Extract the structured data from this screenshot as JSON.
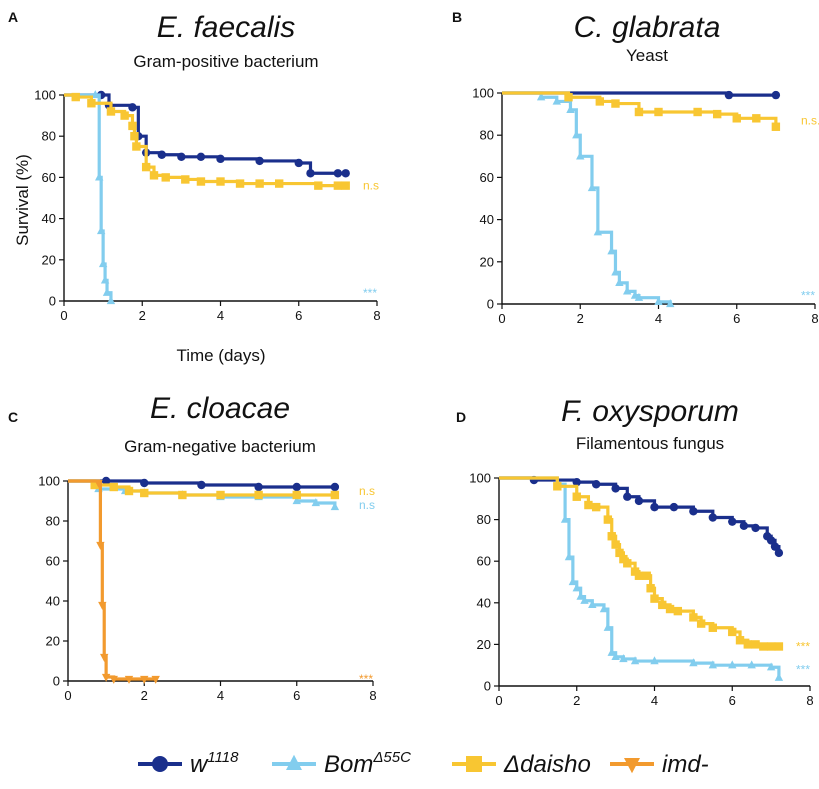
{
  "chart_data": [
    {
      "id": "A",
      "type": "line",
      "letter": "A",
      "title": "E. faecalis",
      "subtitle": "Gram-positive bacterium",
      "xlabel": "Time (days)",
      "ylabel": "Survival (%)",
      "xlim": [
        0,
        8
      ],
      "ylim": [
        0,
        100
      ],
      "xticks": [
        "0",
        "2",
        "4",
        "6",
        "8"
      ],
      "yticks": [
        "0",
        "20",
        "40",
        "60",
        "80",
        "100"
      ],
      "series": [
        {
          "name": "w1118",
          "key": "w",
          "x": [
            0,
            0.95,
            1.15,
            1.75,
            1.9,
            2.1,
            2.5,
            3.0,
            3.5,
            4.0,
            5.0,
            6.0,
            6.3,
            7.0,
            7.2
          ],
          "y": [
            100,
            100,
            95,
            94,
            80,
            72,
            71,
            70,
            70,
            69,
            68,
            67,
            62,
            62,
            62
          ]
        },
        {
          "name": "BomΔ55C",
          "key": "b",
          "x": [
            0,
            0.8,
            0.9,
            0.95,
            1.0,
            1.05,
            1.1,
            1.2
          ],
          "y": [
            100,
            100,
            60,
            34,
            18,
            10,
            4,
            0
          ]
        },
        {
          "name": "Δdaisho",
          "key": "d",
          "x": [
            0,
            0.3,
            0.7,
            1.2,
            1.55,
            1.75,
            1.8,
            1.85,
            2.1,
            2.3,
            2.6,
            3.1,
            3.5,
            4.0,
            4.5,
            5.0,
            5.5,
            6.5,
            7.0,
            7.2
          ],
          "y": [
            100,
            99,
            96,
            92,
            90,
            85,
            80,
            75,
            65,
            61,
            60,
            59,
            58,
            58,
            57,
            57,
            57,
            56,
            56,
            56
          ]
        }
      ],
      "annotations": [
        {
          "text": "n.s",
          "key": "d",
          "y": 56
        },
        {
          "text": "***",
          "key": "b",
          "y": 4
        }
      ]
    },
    {
      "id": "B",
      "type": "line",
      "letter": "B",
      "title": "C. glabrata",
      "subtitle": "Yeast",
      "xlabel": "",
      "ylabel": "",
      "xlim": [
        0,
        8
      ],
      "ylim": [
        0,
        100
      ],
      "xticks": [
        "0",
        "2",
        "4",
        "6",
        "8"
      ],
      "yticks": [
        "0",
        "20",
        "40",
        "60",
        "80",
        "100"
      ],
      "series": [
        {
          "name": "w1118",
          "key": "w",
          "x": [
            0,
            5.8,
            7.0
          ],
          "y": [
            100,
            99,
            99
          ]
        },
        {
          "name": "BomΔ55C",
          "key": "b",
          "x": [
            0,
            1.0,
            1.4,
            1.75,
            1.9,
            2.0,
            2.3,
            2.45,
            2.8,
            2.9,
            3.0,
            3.2,
            3.4,
            3.5,
            4.0,
            4.3
          ],
          "y": [
            100,
            98,
            96,
            92,
            80,
            70,
            55,
            34,
            25,
            15,
            10,
            6,
            4,
            3,
            1,
            0
          ]
        },
        {
          "name": "Δdaisho",
          "key": "d",
          "x": [
            0,
            1.7,
            2.5,
            2.9,
            3.5,
            4.0,
            5.0,
            5.5,
            6.0,
            6.5,
            7.0
          ],
          "y": [
            100,
            98,
            96,
            95,
            91,
            91,
            91,
            90,
            88,
            88,
            84
          ]
        }
      ],
      "annotations": [
        {
          "text": "n.s.",
          "key": "d",
          "y": 87
        },
        {
          "text": "***",
          "key": "b",
          "y": 4
        }
      ]
    },
    {
      "id": "C",
      "type": "line",
      "letter": "C",
      "title": "E. cloacae",
      "subtitle": "Gram-negative bacterium",
      "xlabel": "",
      "ylabel": "",
      "xlim": [
        0,
        8
      ],
      "ylim": [
        0,
        100
      ],
      "xticks": [
        "0",
        "2",
        "4",
        "6",
        "8"
      ],
      "yticks": [
        "0",
        "20",
        "40",
        "60",
        "80",
        "100"
      ],
      "series": [
        {
          "name": "w1118",
          "key": "w",
          "x": [
            0,
            1.0,
            2.0,
            3.5,
            5.0,
            6.0,
            7.0
          ],
          "y": [
            100,
            100,
            99,
            98,
            97,
            97,
            97
          ]
        },
        {
          "name": "BomΔ55C",
          "key": "b",
          "x": [
            0,
            0.8,
            1.5,
            2.0,
            3.0,
            4.0,
            5.0,
            6.0,
            6.5,
            7.0
          ],
          "y": [
            100,
            96,
            95,
            94,
            93,
            92,
            92,
            90,
            89,
            87
          ]
        },
        {
          "name": "Δdaisho",
          "key": "d",
          "x": [
            0,
            0.7,
            1.2,
            1.6,
            2.0,
            3.0,
            4.0,
            5.0,
            6.0,
            7.0
          ],
          "y": [
            100,
            98,
            97,
            95,
            94,
            93,
            93,
            93,
            93,
            93
          ]
        },
        {
          "name": "imd-",
          "key": "i",
          "x": [
            0,
            0.8,
            0.85,
            0.9,
            0.95,
            1.0,
            1.2,
            1.6,
            2.0,
            2.3
          ],
          "y": [
            100,
            99,
            68,
            38,
            12,
            2,
            1,
            1,
            1,
            1
          ]
        }
      ],
      "annotations": [
        {
          "text": "n.s",
          "key": "d",
          "y": 95
        },
        {
          "text": "n.s",
          "key": "b",
          "y": 88
        },
        {
          "text": "***",
          "key": "i",
          "y": 1
        }
      ]
    },
    {
      "id": "D",
      "type": "line",
      "letter": "D",
      "title": "F. oxysporum",
      "subtitle": "Filamentous fungus",
      "xlabel": "",
      "ylabel": "",
      "xlim": [
        0,
        8
      ],
      "ylim": [
        0,
        100
      ],
      "xticks": [
        "0",
        "2",
        "4",
        "6",
        "8"
      ],
      "yticks": [
        "0",
        "20",
        "40",
        "60",
        "80",
        "100"
      ],
      "series": [
        {
          "name": "w1118",
          "key": "w",
          "x": [
            0,
            0.9,
            2.0,
            2.5,
            3.0,
            3.3,
            3.6,
            4.0,
            4.5,
            5.0,
            5.5,
            6.0,
            6.3,
            6.6,
            6.9,
            7.0,
            7.1,
            7.2
          ],
          "y": [
            100,
            99,
            98,
            97,
            95,
            91,
            89,
            86,
            86,
            84,
            81,
            79,
            77,
            76,
            72,
            70,
            67,
            64
          ]
        },
        {
          "name": "BomΔ55C",
          "key": "b",
          "x": [
            0,
            1.5,
            1.7,
            1.8,
            1.9,
            2.0,
            2.1,
            2.2,
            2.4,
            2.7,
            2.8,
            2.9,
            3.0,
            3.2,
            3.5,
            4.0,
            5.0,
            5.5,
            6.0,
            6.5,
            7.0,
            7.2
          ],
          "y": [
            100,
            97,
            80,
            62,
            50,
            47,
            43,
            41,
            39,
            37,
            28,
            16,
            14,
            13,
            12,
            12,
            11,
            10,
            10,
            10,
            9,
            4
          ]
        },
        {
          "name": "Δdaisho",
          "key": "d",
          "x": [
            0,
            1.5,
            2.0,
            2.3,
            2.5,
            2.8,
            2.9,
            3.0,
            3.1,
            3.2,
            3.3,
            3.5,
            3.6,
            3.8,
            3.9,
            4.0,
            4.2,
            4.4,
            4.6,
            5.0,
            5.2,
            5.5,
            6.0,
            6.2,
            6.4,
            6.6,
            6.8,
            7.0,
            7.2
          ],
          "y": [
            100,
            96,
            91,
            87,
            86,
            80,
            72,
            68,
            64,
            61,
            59,
            55,
            53,
            53,
            47,
            42,
            39,
            37,
            36,
            33,
            30,
            28,
            26,
            22,
            20,
            20,
            19,
            19,
            19
          ]
        }
      ],
      "annotations": [
        {
          "text": "***",
          "key": "d",
          "y": 19
        },
        {
          "text": "***",
          "key": "b",
          "y": 8
        }
      ]
    }
  ],
  "colors": {
    "w": "#1a2f8c",
    "b": "#82cdee",
    "d": "#f8c632",
    "i": "#f29a2e"
  },
  "legend": [
    {
      "key": "w",
      "label": "w",
      "sup": "1118",
      "marker": "circle"
    },
    {
      "key": "b",
      "label": "Bom",
      "sup": "Δ55C",
      "marker": "triangle"
    },
    {
      "key": "d",
      "label": "Δdaisho",
      "sup": "",
      "marker": "square"
    },
    {
      "key": "i",
      "label": "imd-",
      "sup": "",
      "marker": "invtriangle"
    }
  ]
}
